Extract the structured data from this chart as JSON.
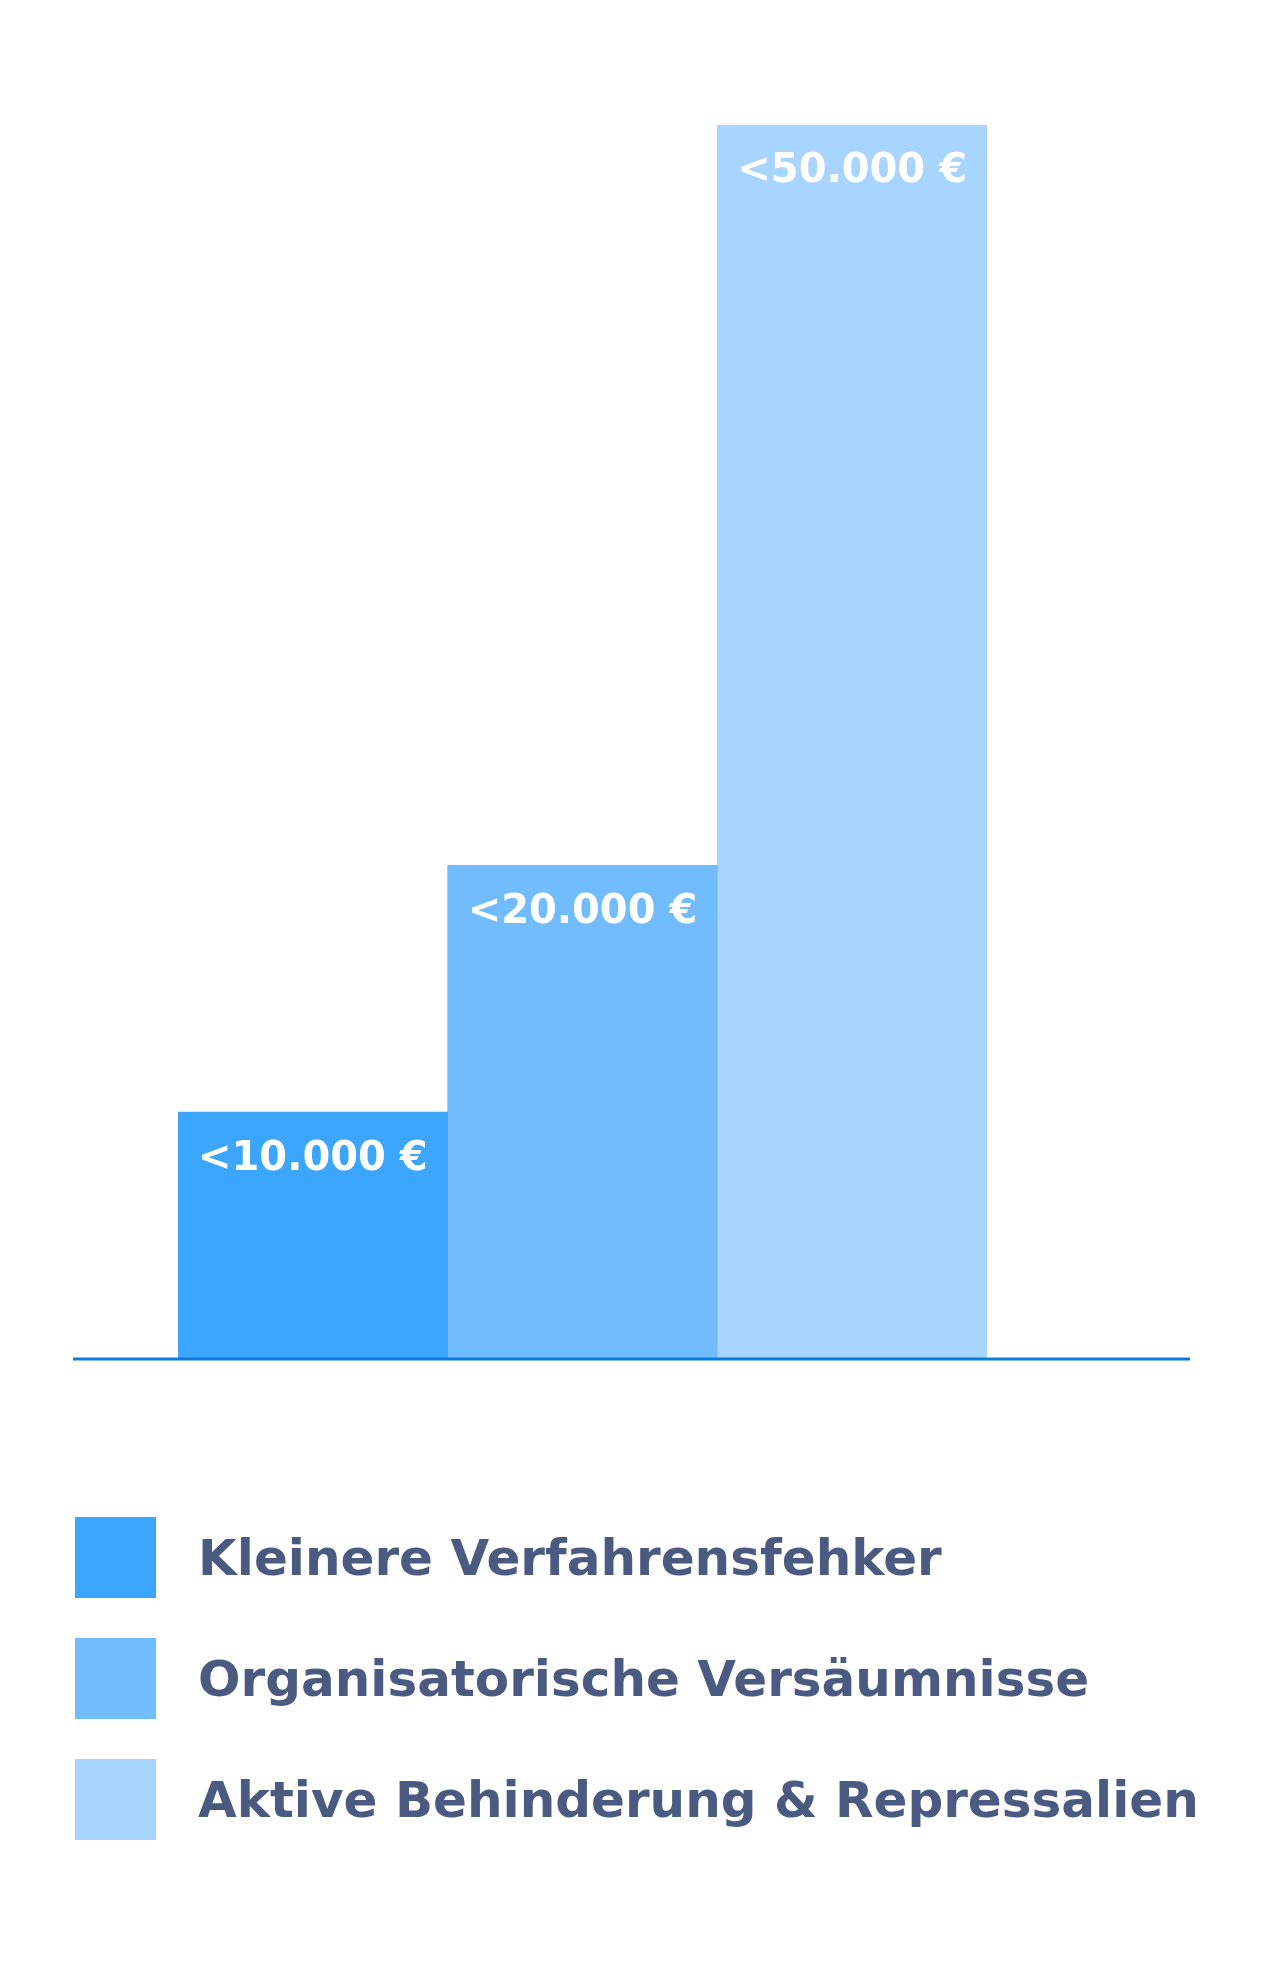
{
  "chart_data": {
    "type": "bar",
    "categories": [
      null
    ],
    "series": [
      {
        "name": "Kleinere Verfahrensfehker",
        "color": "#3ca5fe",
        "values": [
          10000
        ],
        "value_labels": [
          "<10.000 €"
        ]
      },
      {
        "name": "Organisatorische Versäumnisse",
        "color": "#71bcfe",
        "values": [
          20000
        ],
        "value_labels": [
          "<20.000 €"
        ]
      },
      {
        "name": "Aktive Behinderung & Repressalien",
        "color": "#a7d5fe",
        "values": [
          50000
        ],
        "value_labels": [
          "<50.000 €"
        ]
      }
    ],
    "tick_labels": false,
    "legend": "bottom"
  }
}
